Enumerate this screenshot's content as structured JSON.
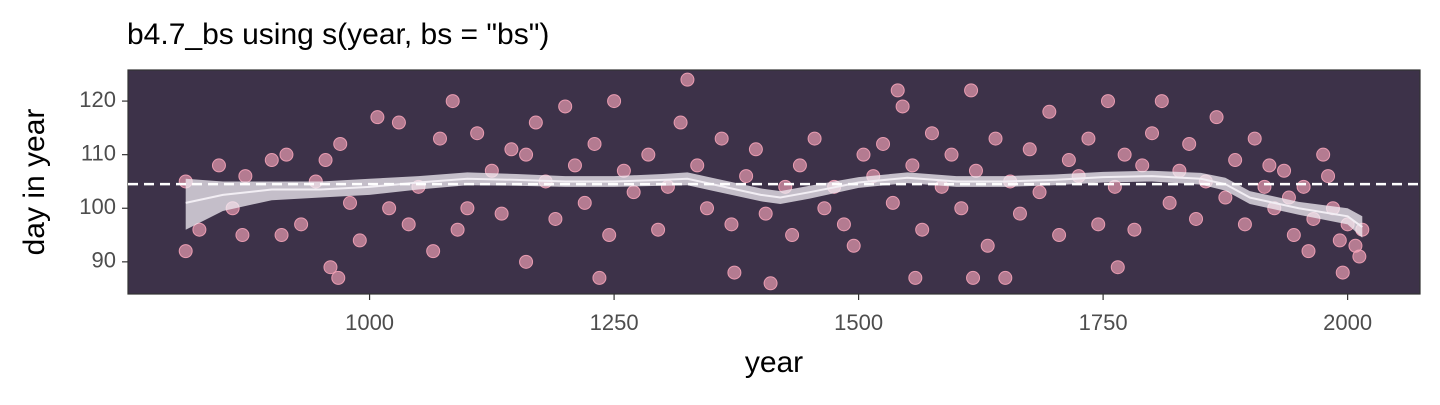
{
  "chart_data": {
    "type": "scatter",
    "title": "b4.7_bs using s(year, bs = \"bs\")",
    "x_label": "year",
    "y_label": "day in year",
    "xlim": [
      753,
      2074
    ],
    "ylim": [
      84,
      125.8
    ],
    "xticks": [
      1000,
      1250,
      1500,
      1750,
      2000
    ],
    "yticks": [
      90,
      100,
      110,
      120
    ],
    "grid": false,
    "panel_color": "#3d3249",
    "hline": 104.5,
    "hline_color": "#ffffff",
    "points": {
      "color": "#f4a3b8",
      "x": [
        812,
        812,
        826,
        846,
        860,
        870,
        873,
        900,
        910,
        915,
        930,
        945,
        955,
        960,
        968,
        970,
        980,
        990,
        1008,
        1020,
        1030,
        1040,
        1050,
        1065,
        1072,
        1085,
        1090,
        1100,
        1110,
        1125,
        1135,
        1145,
        1160,
        1160,
        1170,
        1180,
        1190,
        1200,
        1210,
        1220,
        1230,
        1235,
        1245,
        1250,
        1260,
        1270,
        1285,
        1295,
        1305,
        1318,
        1325,
        1335,
        1345,
        1360,
        1370,
        1373,
        1385,
        1395,
        1405,
        1410,
        1425,
        1432,
        1440,
        1455,
        1465,
        1475,
        1485,
        1495,
        1505,
        1515,
        1525,
        1535,
        1540,
        1545,
        1555,
        1558,
        1565,
        1575,
        1585,
        1595,
        1605,
        1615,
        1617,
        1620,
        1632,
        1640,
        1650,
        1655,
        1665,
        1675,
        1685,
        1695,
        1705,
        1715,
        1725,
        1735,
        1745,
        1755,
        1762,
        1765,
        1772,
        1782,
        1790,
        1800,
        1810,
        1818,
        1828,
        1838,
        1845,
        1855,
        1866,
        1875,
        1885,
        1895,
        1905,
        1915,
        1920,
        1925,
        1935,
        1940,
        1945,
        1955,
        1960,
        1965,
        1975,
        1980,
        1985,
        1992,
        1995,
        2000,
        2008,
        2012,
        2015
      ],
      "y": [
        92,
        105,
        96,
        108,
        100,
        95,
        106,
        109,
        95,
        110,
        97,
        105,
        109,
        89,
        87,
        112,
        101,
        94,
        117,
        100,
        116,
        97,
        104,
        92,
        113,
        120,
        96,
        100,
        114,
        107,
        99,
        111,
        90,
        110,
        116,
        105,
        98,
        119,
        108,
        101,
        112,
        87,
        95,
        120,
        107,
        103,
        110,
        96,
        104,
        116,
        124,
        108,
        100,
        113,
        97,
        88,
        106,
        111,
        99,
        86,
        104,
        95,
        108,
        113,
        100,
        104,
        97,
        93,
        110,
        106,
        112,
        101,
        122,
        119,
        108,
        87,
        96,
        114,
        104,
        110,
        100,
        122,
        87,
        107,
        93,
        113,
        87,
        105,
        99,
        111,
        103,
        118,
        95,
        109,
        106,
        113,
        97,
        120,
        104,
        89,
        110,
        96,
        108,
        114,
        120,
        101,
        107,
        112,
        98,
        105,
        117,
        102,
        109,
        97,
        113,
        104,
        108,
        100,
        107,
        102,
        95,
        104,
        92,
        98,
        110,
        106,
        100,
        94,
        88,
        97,
        93,
        91,
        96
      ]
    },
    "smooth": {
      "color": "#f2eef4",
      "x": [
        812,
        850,
        900,
        950,
        1000,
        1050,
        1100,
        1150,
        1200,
        1250,
        1300,
        1325,
        1350,
        1400,
        1420,
        1450,
        1500,
        1550,
        1600,
        1650,
        1700,
        1750,
        1800,
        1850,
        1875,
        1900,
        1950,
        2000,
        2015
      ],
      "fit": [
        101,
        102.5,
        103.5,
        103.5,
        104,
        104.8,
        105.5,
        105.3,
        105,
        105,
        105.3,
        105.5,
        104.5,
        102.5,
        102,
        103,
        104.8,
        105.7,
        105,
        105,
        105.3,
        105.8,
        106,
        105.5,
        104.5,
        102,
        100,
        98.5,
        96.5
      ],
      "lower": [
        96,
        99.5,
        101.5,
        102,
        102.5,
        103.5,
        104.3,
        104.2,
        104,
        104,
        104.2,
        104.3,
        103.3,
        101.3,
        100.8,
        101.8,
        103.8,
        104.7,
        104,
        104,
        104.3,
        104.8,
        105,
        104.4,
        103.3,
        100.8,
        98.8,
        97,
        94.5
      ],
      "upper": [
        105.5,
        105,
        105,
        105,
        105.5,
        106,
        106.7,
        106.4,
        106,
        106,
        106.4,
        106.7,
        105.7,
        103.7,
        103.2,
        104.2,
        105.8,
        106.7,
        106,
        106,
        106.3,
        106.8,
        107,
        106.6,
        105.7,
        103.2,
        101.2,
        100,
        98.5
      ]
    }
  }
}
